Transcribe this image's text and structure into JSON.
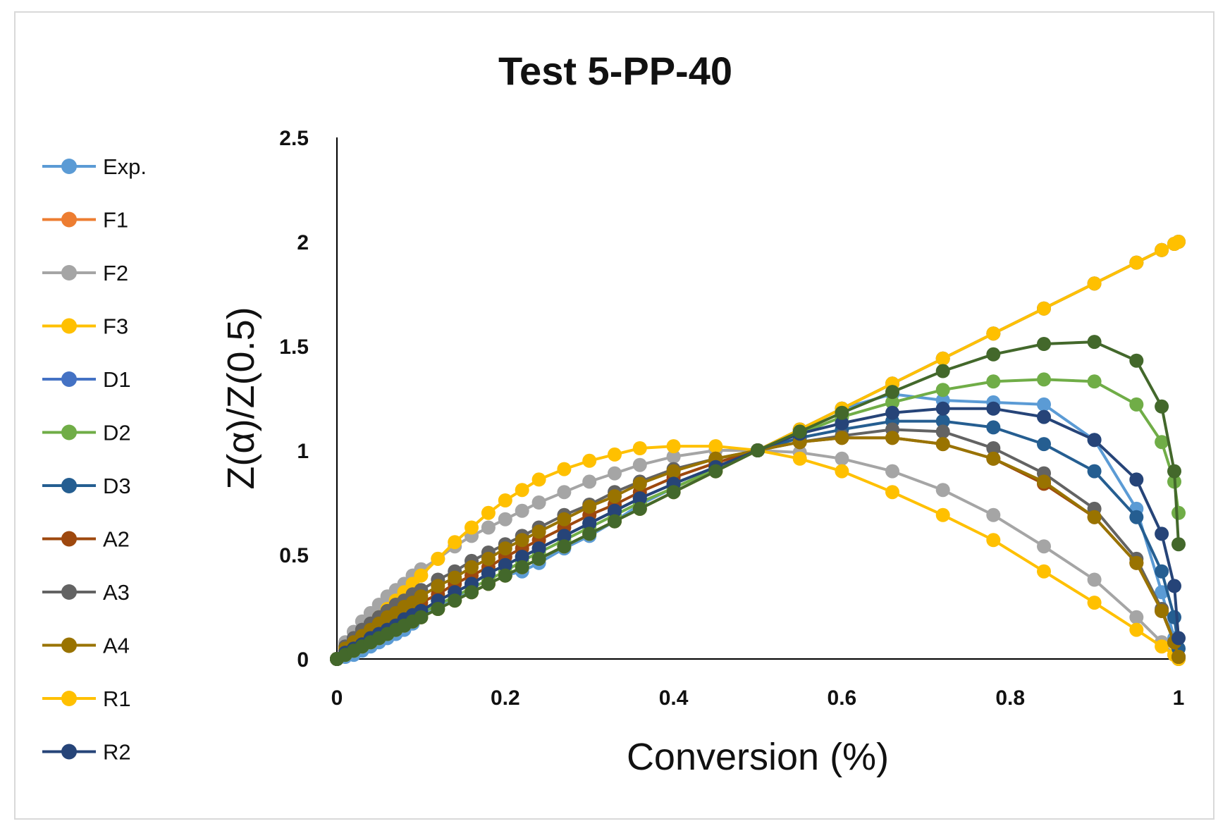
{
  "chart_data": {
    "type": "line",
    "title": "Test 5-PP-40",
    "xlabel": "Conversion (%)",
    "ylabel": "Z(α)/Z(0.5)",
    "xlim": [
      0,
      1
    ],
    "ylim": [
      0,
      2.5
    ],
    "x_ticks": [
      "0",
      "0.2",
      "0.4",
      "0.6",
      "0.8",
      "1"
    ],
    "y_ticks": [
      "0",
      "0.5",
      "1",
      "1.5",
      "2",
      "2.5"
    ],
    "grid": false,
    "legend_position": "left",
    "markers": "circle",
    "x": [
      0,
      0.01,
      0.02,
      0.03,
      0.04,
      0.05,
      0.06,
      0.07,
      0.08,
      0.09,
      0.1,
      0.12,
      0.14,
      0.16,
      0.18,
      0.2,
      0.22,
      0.24,
      0.27,
      0.3,
      0.33,
      0.36,
      0.4,
      0.45,
      0.5,
      0.55,
      0.6,
      0.66,
      0.72,
      0.78,
      0.84,
      0.9,
      0.95,
      0.98,
      0.995,
      1
    ],
    "series": [
      {
        "name": "Exp.",
        "color": "#5b9bd5",
        "values": [
          0,
          0.01,
          0.02,
          0.04,
          0.06,
          0.08,
          0.1,
          0.12,
          0.14,
          0.17,
          0.2,
          0.25,
          0.29,
          0.32,
          0.36,
          0.4,
          0.42,
          0.46,
          0.53,
          0.59,
          0.66,
          0.74,
          0.82,
          0.91,
          1,
          1.1,
          1.2,
          1.27,
          1.24,
          1.23,
          1.22,
          1.05,
          0.72,
          0.32,
          0.1,
          0
        ]
      },
      {
        "name": "F1",
        "color": "#ed7d31",
        "values": [
          0,
          0.02,
          0.04,
          0.06,
          0.08,
          0.1,
          0.12,
          0.14,
          0.16,
          0.18,
          0.2,
          0.24,
          0.28,
          0.32,
          0.36,
          0.4,
          0.44,
          0.48,
          0.54,
          0.6,
          0.66,
          0.72,
          0.8,
          0.9,
          1,
          1.1,
          1.2,
          1.32,
          1.44,
          1.56,
          1.68,
          1.8,
          1.9,
          1.96,
          1.99,
          2
        ]
      },
      {
        "name": "F2",
        "color": "#a5a5a5",
        "values": [
          0,
          0.08,
          0.13,
          0.18,
          0.22,
          0.26,
          0.3,
          0.33,
          0.36,
          0.4,
          0.43,
          0.48,
          0.54,
          0.59,
          0.63,
          0.67,
          0.71,
          0.75,
          0.8,
          0.85,
          0.89,
          0.93,
          0.97,
          1,
          1,
          0.99,
          0.96,
          0.9,
          0.81,
          0.69,
          0.54,
          0.38,
          0.2,
          0.08,
          0.02,
          0
        ]
      },
      {
        "name": "F3",
        "color": "#ffc000",
        "values": [
          0,
          0.04,
          0.08,
          0.12,
          0.16,
          0.2,
          0.24,
          0.28,
          0.32,
          0.36,
          0.4,
          0.48,
          0.56,
          0.63,
          0.7,
          0.76,
          0.81,
          0.86,
          0.91,
          0.95,
          0.98,
          1.01,
          1.02,
          1.02,
          1,
          0.96,
          0.9,
          0.8,
          0.69,
          0.57,
          0.42,
          0.27,
          0.14,
          0.06,
          0.02,
          0
        ]
      },
      {
        "name": "D1",
        "color": "#4472c4",
        "values": [
          0,
          0.02,
          0.04,
          0.06,
          0.08,
          0.1,
          0.12,
          0.14,
          0.16,
          0.18,
          0.2,
          0.24,
          0.28,
          0.32,
          0.36,
          0.4,
          0.44,
          0.48,
          0.54,
          0.6,
          0.66,
          0.72,
          0.8,
          0.9,
          1,
          1.1,
          1.2,
          1.32,
          1.44,
          1.56,
          1.68,
          1.8,
          1.9,
          1.96,
          1.99,
          2
        ]
      },
      {
        "name": "D2",
        "color": "#70ad47",
        "values": [
          0,
          0.02,
          0.04,
          0.06,
          0.08,
          0.1,
          0.12,
          0.15,
          0.17,
          0.19,
          0.22,
          0.26,
          0.3,
          0.34,
          0.38,
          0.42,
          0.47,
          0.51,
          0.57,
          0.63,
          0.69,
          0.75,
          0.82,
          0.91,
          1,
          1.08,
          1.16,
          1.23,
          1.29,
          1.33,
          1.34,
          1.33,
          1.22,
          1.04,
          0.85,
          0.7
        ]
      },
      {
        "name": "D3",
        "color": "#255e91",
        "values": [
          0,
          0.03,
          0.05,
          0.07,
          0.1,
          0.12,
          0.14,
          0.16,
          0.19,
          0.21,
          0.23,
          0.28,
          0.32,
          0.36,
          0.41,
          0.45,
          0.49,
          0.53,
          0.59,
          0.65,
          0.71,
          0.77,
          0.84,
          0.92,
          1,
          1.06,
          1.1,
          1.14,
          1.14,
          1.11,
          1.03,
          0.9,
          0.68,
          0.42,
          0.2,
          0.05
        ]
      },
      {
        "name": "A2",
        "color": "#9e480e",
        "values": [
          0,
          0.04,
          0.07,
          0.1,
          0.13,
          0.15,
          0.18,
          0.2,
          0.22,
          0.25,
          0.27,
          0.31,
          0.36,
          0.4,
          0.44,
          0.49,
          0.53,
          0.57,
          0.63,
          0.69,
          0.74,
          0.8,
          0.87,
          0.94,
          1,
          1.04,
          1.06,
          1.06,
          1.03,
          0.96,
          0.84,
          0.68,
          0.46,
          0.23,
          0.08,
          0.01
        ]
      },
      {
        "name": "A3",
        "color": "#636363",
        "values": [
          0,
          0.06,
          0.1,
          0.14,
          0.17,
          0.2,
          0.23,
          0.26,
          0.28,
          0.31,
          0.33,
          0.38,
          0.42,
          0.47,
          0.51,
          0.55,
          0.59,
          0.63,
          0.69,
          0.74,
          0.8,
          0.85,
          0.91,
          0.96,
          1,
          1.04,
          1.07,
          1.1,
          1.09,
          1.01,
          0.89,
          0.72,
          0.48,
          0.24,
          0.08,
          0.01
        ]
      },
      {
        "name": "A4",
        "color": "#997300",
        "values": [
          0,
          0.05,
          0.08,
          0.11,
          0.14,
          0.17,
          0.2,
          0.22,
          0.25,
          0.27,
          0.3,
          0.35,
          0.39,
          0.44,
          0.48,
          0.53,
          0.57,
          0.61,
          0.67,
          0.73,
          0.78,
          0.84,
          0.9,
          0.96,
          1,
          1.04,
          1.06,
          1.06,
          1.03,
          0.96,
          0.85,
          0.68,
          0.46,
          0.23,
          0.08,
          0.01
        ]
      },
      {
        "name": "R1",
        "color": "#ffc000",
        "values": [
          0,
          0.02,
          0.04,
          0.06,
          0.08,
          0.1,
          0.12,
          0.14,
          0.16,
          0.18,
          0.2,
          0.24,
          0.28,
          0.32,
          0.36,
          0.4,
          0.44,
          0.48,
          0.54,
          0.6,
          0.66,
          0.72,
          0.8,
          0.9,
          1,
          1.1,
          1.2,
          1.32,
          1.44,
          1.56,
          1.68,
          1.8,
          1.9,
          1.96,
          1.99,
          2
        ]
      },
      {
        "name": "R2",
        "color": "#264478",
        "values": [
          0,
          0.03,
          0.05,
          0.07,
          0.1,
          0.12,
          0.14,
          0.16,
          0.19,
          0.21,
          0.23,
          0.28,
          0.32,
          0.36,
          0.41,
          0.45,
          0.49,
          0.53,
          0.59,
          0.65,
          0.71,
          0.77,
          0.84,
          0.92,
          1,
          1.08,
          1.13,
          1.18,
          1.2,
          1.2,
          1.16,
          1.05,
          0.86,
          0.6,
          0.35,
          0.1
        ]
      },
      {
        "color": "#43682b",
        "values": [
          0,
          0.02,
          0.04,
          0.06,
          0.08,
          0.1,
          0.12,
          0.14,
          0.16,
          0.18,
          0.2,
          0.24,
          0.28,
          0.32,
          0.36,
          0.4,
          0.44,
          0.48,
          0.54,
          0.6,
          0.66,
          0.72,
          0.8,
          0.9,
          1,
          1.09,
          1.18,
          1.28,
          1.38,
          1.46,
          1.51,
          1.52,
          1.43,
          1.21,
          0.9,
          0.55
        ]
      }
    ]
  }
}
